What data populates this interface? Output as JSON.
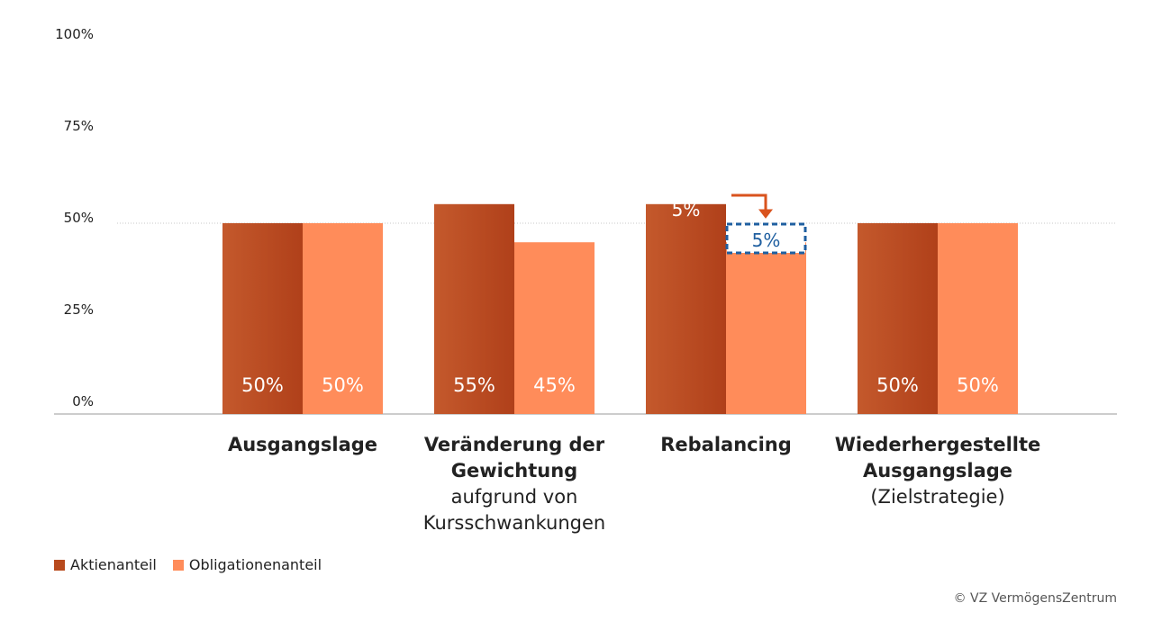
{
  "chart_data": {
    "type": "bar",
    "ylim": [
      0,
      100
    ],
    "yticks": [
      0,
      25,
      50,
      75,
      100
    ],
    "ytick_labels": [
      "0%",
      "25%",
      "50%",
      "75%",
      "100%"
    ],
    "reference_line": 50,
    "categories": [
      {
        "bold": "Ausgangslage",
        "normal": ""
      },
      {
        "bold": "Veränderung der Gewichtung",
        "normal": "aufgrund von Kursschwankungen"
      },
      {
        "bold": "Rebalancing",
        "normal": ""
      },
      {
        "bold": "Wiederhergestellte Ausgangslage",
        "normal": "(Zielstrategie)"
      }
    ],
    "series": [
      {
        "name": "Aktienanteil",
        "values": [
          50,
          55,
          55,
          50
        ],
        "labels": [
          "50%",
          "55%",
          "",
          "50%"
        ],
        "color": "#b84a1d"
      },
      {
        "name": "Obligationenanteil",
        "values": [
          50,
          45,
          45,
          50
        ],
        "labels": [
          "50%",
          "45%",
          "",
          "50%"
        ],
        "color": "#ff8c5a"
      }
    ],
    "rebalancing": {
      "category_index": 2,
      "from_label": "5%",
      "to_label": "5%",
      "arrow_color": "#d9531e",
      "dashed_color": "#1f5fa0"
    }
  },
  "legend": [
    {
      "label": "Aktienanteil",
      "color": "#b84a1d"
    },
    {
      "label": "Obligationenanteil",
      "color": "#ff8c5a"
    }
  ],
  "credit": "© VZ VermögensZentrum"
}
